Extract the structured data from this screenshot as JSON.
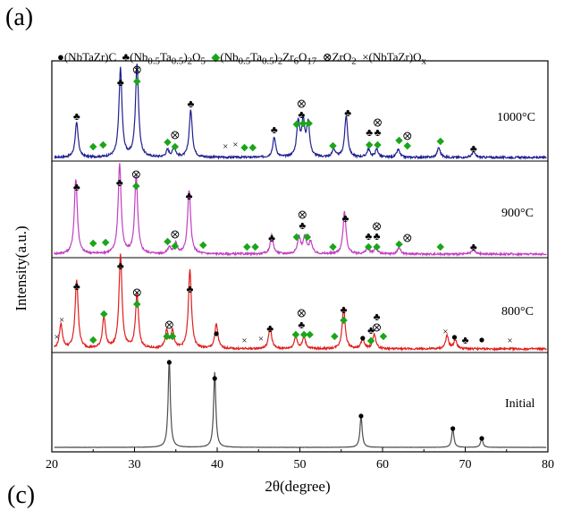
{
  "panel_label": "(a)",
  "bottom_label": "(c)",
  "legend": {
    "e1": "●(NbTaZr)C",
    "e2a": "♣(Nb",
    "e2s1": "0.5",
    "e2b": "Ta",
    "e2s2": "0.5",
    "e2c": ")",
    "e2s3": "2",
    "e2d": "O",
    "e2s4": "5",
    "e3a": "(Nb",
    "e3s1": "0.5",
    "e3b": "Ta",
    "e3s2": "0.5",
    "e3c": ")",
    "e3s3": "2",
    "e3d": "Zr",
    "e3s4": "6",
    "e3e": "O",
    "e3s5": "17",
    "e4a": "⊗ZrO",
    "e4s1": "2",
    "e5a": "×(NbTaZr)O",
    "e5s1": "x",
    "colors": {
      "diamond": "#1aa61a"
    }
  },
  "chart_data": {
    "type": "line",
    "xlabel": "2θ(degree)",
    "ylabel": "Intensity(a.u.)",
    "xlim": [
      20,
      80
    ],
    "xticks": [
      "20",
      "30",
      "40",
      "50",
      "60",
      "70",
      "80"
    ],
    "series": [
      {
        "name": "1000°C",
        "color": "#1f1f8f",
        "peaks": [
          [
            23.0,
            0.35
          ],
          [
            28.3,
            0.9
          ],
          [
            30.3,
            0.95
          ],
          [
            34.0,
            0.07
          ],
          [
            34.8,
            0.1
          ],
          [
            36.8,
            0.48
          ],
          [
            46.9,
            0.2
          ],
          [
            49.8,
            0.35
          ],
          [
            50.4,
            0.35
          ],
          [
            51.0,
            0.33
          ],
          [
            54.1,
            0.08
          ],
          [
            55.6,
            0.42
          ],
          [
            58.3,
            0.08
          ],
          [
            59.3,
            0.08
          ],
          [
            61.9,
            0.08
          ],
          [
            66.8,
            0.1
          ],
          [
            71.0,
            0.06
          ]
        ]
      },
      {
        "name": "900°C",
        "color": "#c23ec2",
        "peaks": [
          [
            22.9,
            0.8
          ],
          [
            28.2,
            0.95
          ],
          [
            30.2,
            0.82
          ],
          [
            34.2,
            0.07
          ],
          [
            35.0,
            0.11
          ],
          [
            36.6,
            0.68
          ],
          [
            46.6,
            0.2
          ],
          [
            49.9,
            0.18
          ],
          [
            50.6,
            0.18
          ],
          [
            51.3,
            0.13
          ],
          [
            55.4,
            0.45
          ],
          [
            58.2,
            0.07
          ],
          [
            59.2,
            0.07
          ],
          [
            62.0,
            0.07
          ],
          [
            71.0,
            0.05
          ]
        ]
      },
      {
        "name": "800°C",
        "color": "#e01e1e",
        "peaks": [
          [
            21.1,
            0.25
          ],
          [
            23.0,
            0.7
          ],
          [
            26.3,
            0.32
          ],
          [
            28.3,
            0.95
          ],
          [
            30.3,
            0.55
          ],
          [
            33.9,
            0.18
          ],
          [
            34.6,
            0.18
          ],
          [
            36.7,
            0.8
          ],
          [
            39.9,
            0.25
          ],
          [
            46.4,
            0.22
          ],
          [
            49.5,
            0.12
          ],
          [
            50.5,
            0.12
          ],
          [
            55.3,
            0.42
          ],
          [
            57.6,
            0.1
          ],
          [
            59.0,
            0.15
          ],
          [
            67.8,
            0.13
          ],
          [
            68.8,
            0.09
          ]
        ]
      },
      {
        "name": "Initial",
        "color": "#4d4d4d",
        "peaks": [
          [
            34.2,
            0.93
          ],
          [
            39.7,
            0.8
          ],
          [
            57.4,
            0.33
          ],
          [
            68.5,
            0.2
          ],
          [
            72.0,
            0.1
          ]
        ]
      }
    ],
    "legend_position": "top"
  }
}
